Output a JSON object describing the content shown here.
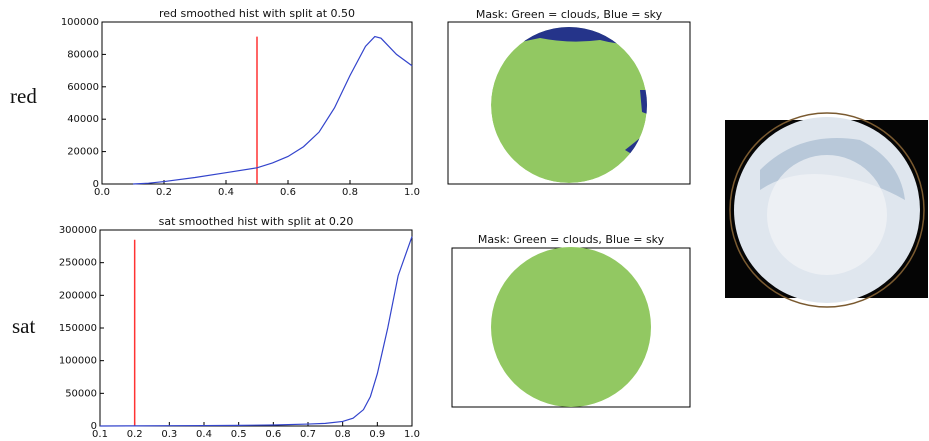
{
  "row_labels": [
    "red",
    "sat"
  ],
  "chart_data": [
    {
      "type": "line",
      "title": "red smoothed hist with split at 0.50",
      "x": [
        0.1,
        0.15,
        0.2,
        0.3,
        0.4,
        0.5,
        0.55,
        0.6,
        0.65,
        0.7,
        0.75,
        0.8,
        0.85,
        0.88,
        0.9,
        0.95,
        1.0
      ],
      "series": [
        {
          "name": "red",
          "color": "#3344cc",
          "values": [
            0,
            500,
            1500,
            4000,
            7000,
            10000,
            13000,
            17000,
            23000,
            32000,
            47000,
            67000,
            85000,
            91000,
            90000,
            80000,
            73000
          ]
        }
      ],
      "vlines": [
        {
          "x": 0.5,
          "y": [
            0,
            91000
          ],
          "color": "#ff3333"
        }
      ],
      "xlim": [
        0,
        1
      ],
      "xticks": [
        {
          "value": 0,
          "label": "0.0"
        },
        0.2,
        0.4,
        0.6,
        0.8,
        {
          "value": 1,
          "label": "1.0"
        }
      ],
      "ylim": [
        0,
        100000
      ],
      "yticks": [
        0,
        20000,
        40000,
        60000,
        80000,
        100000
      ]
    },
    {
      "type": "line",
      "title": "sat smoothed hist with split at 0.20",
      "x": [
        0.1,
        0.2,
        0.3,
        0.4,
        0.5,
        0.6,
        0.7,
        0.75,
        0.8,
        0.83,
        0.86,
        0.88,
        0.9,
        0.93,
        0.96,
        1.0
      ],
      "series": [
        {
          "name": "sat",
          "color": "#3344cc",
          "values": [
            0,
            200,
            500,
            700,
            1000,
            1500,
            3000,
            4000,
            7000,
            12000,
            25000,
            45000,
            80000,
            150000,
            230000,
            290000
          ]
        }
      ],
      "vlines": [
        {
          "x": 0.2,
          "y": [
            0,
            285000
          ],
          "color": "#ff3333"
        }
      ],
      "xlim": [
        0.1,
        1
      ],
      "xticks": [
        0.1,
        0.2,
        0.3,
        0.4,
        0.5,
        0.6,
        0.7,
        0.8,
        0.9,
        {
          "value": 1,
          "label": "1.0"
        }
      ],
      "ylim": [
        0,
        300000
      ],
      "yticks": [
        0,
        50000,
        100000,
        150000,
        200000,
        250000,
        300000
      ]
    }
  ],
  "masks": [
    {
      "title": "Mask: Green = clouds, Blue = sky"
    },
    {
      "title": "Mask: Green = clouds, Blue = sky"
    }
  ]
}
